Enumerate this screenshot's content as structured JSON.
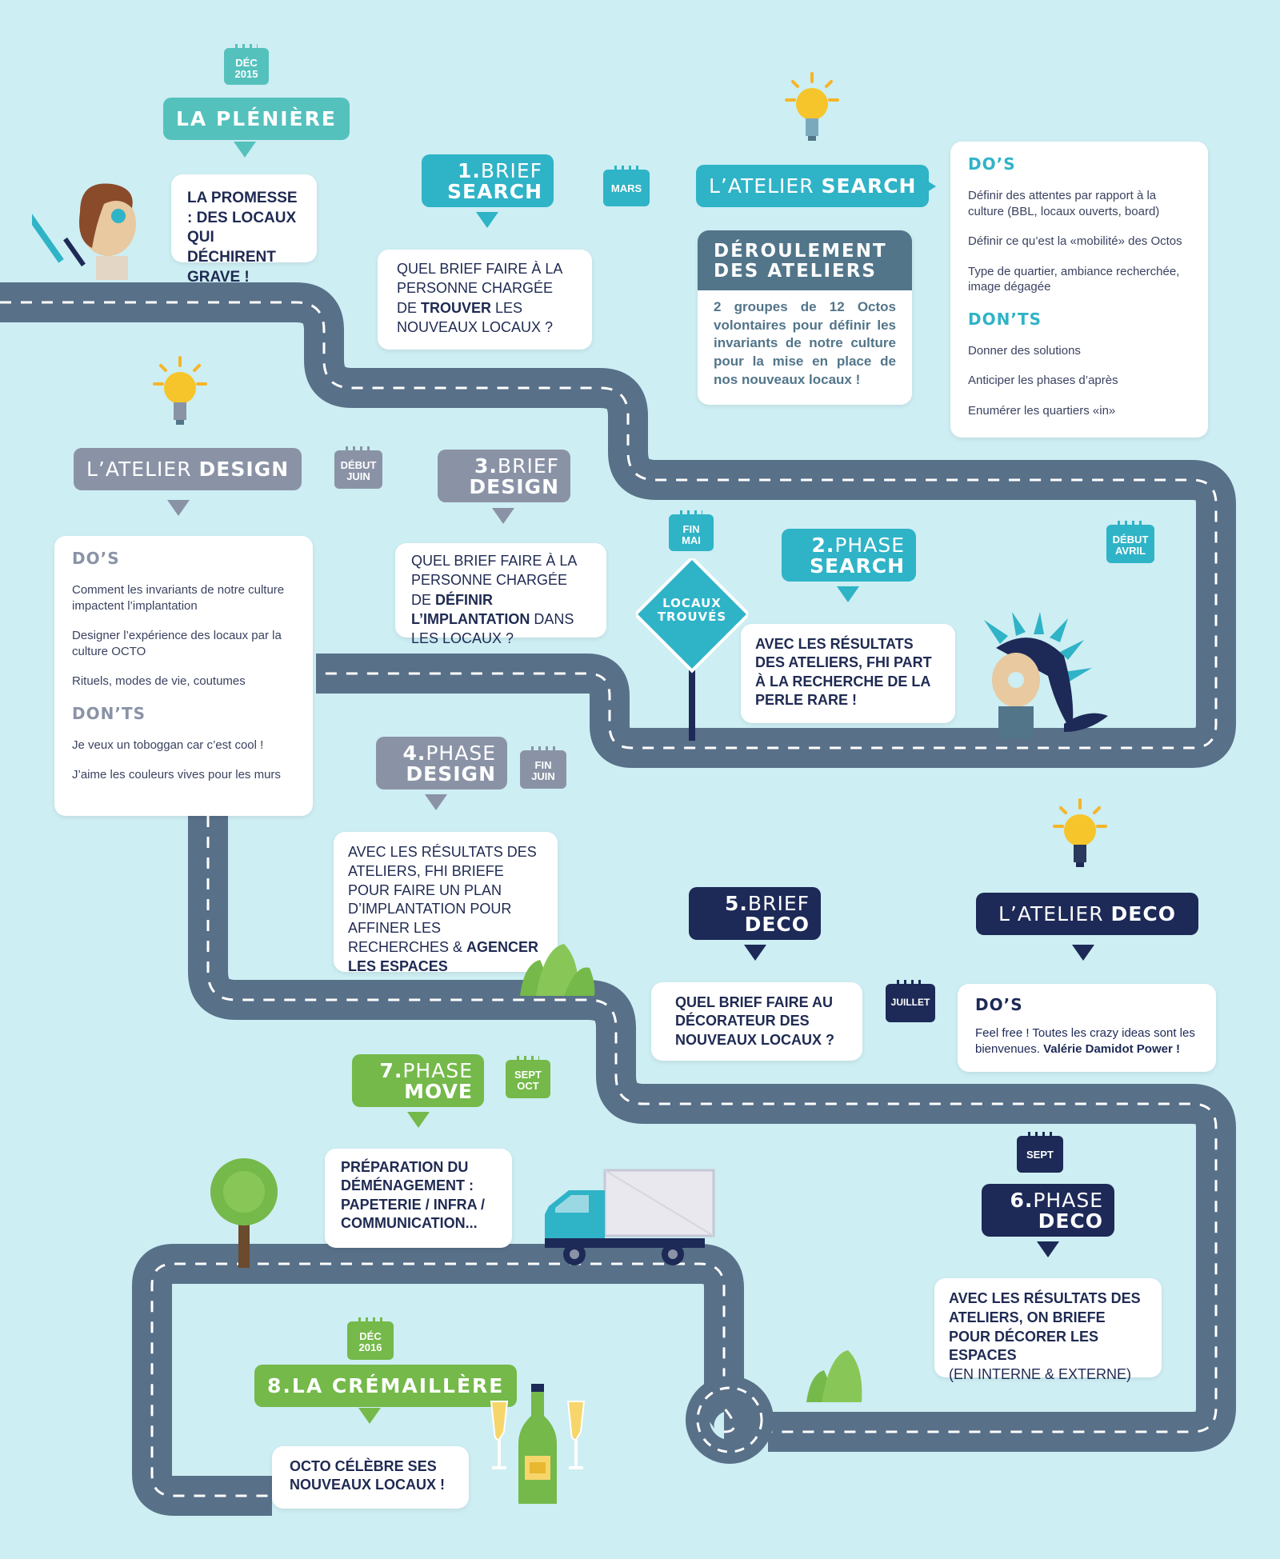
{
  "colors": {
    "background": "#cdeef3",
    "road": "#587088",
    "teal": "#2fb3c7",
    "slate": "#52758a",
    "grey": "#8a93a6",
    "navy": "#1d2957",
    "green": "#74b94a"
  },
  "pleniere": {
    "date": "DÉC\n2015",
    "title": "LA PLÉNIÈRE",
    "card": "LA PROMESSE : DES LOCAUX QUI DÉCHIRENT GRAVE !"
  },
  "brief_search": {
    "num": "1.",
    "pre": "BRIEF",
    "main": "SEARCH",
    "card_pre": "QUEL BRIEF FAIRE À LA PERSONNE CHARGÉE DE ",
    "card_bold": "TROUVER",
    "card_post": " LES NOUVEAUX LOCAUX ?"
  },
  "mars": {
    "date": "MARS"
  },
  "atelier_search": {
    "pre": "L’ATELIER ",
    "main": "SEARCH",
    "dos_title": "DO’S",
    "dos": [
      "Définir des attentes par rapport à la culture (BBL, locaux ouverts, board)",
      "Définir ce qu’est la «mobilité» des Octos",
      "Type de quartier, ambiance recherchée, image dégagée"
    ],
    "donts_title": "DON’TS",
    "donts": [
      "Donner des solutions",
      "Anticiper les phases d’après",
      "Enumérer les quartiers «in»"
    ]
  },
  "deroulement": {
    "title": "DÉROULEMENT DES ATELIERS",
    "text": "2 groupes de 12 Octos volontaires pour définir les invariants de notre culture pour la mise en place de nos nouveaux locaux !"
  },
  "atelier_design": {
    "pre": "L’ATELIER ",
    "main": "DESIGN",
    "dos_title": "DO’S",
    "dos": [
      "Comment les invariants de notre culture impactent l’implantation",
      "Designer l’expérience des locaux par la culture OCTO",
      "Rituels, modes de vie, coutumes"
    ],
    "donts_title": "DON’TS",
    "donts": [
      "Je veux un toboggan car c’est cool !",
      "J’aime les couleurs vives pour les murs"
    ]
  },
  "debut_juin": {
    "date": "DÉBUT\nJUIN"
  },
  "brief_design": {
    "num": "3.",
    "pre": "BRIEF",
    "main": "DESIGN",
    "card_pre": "QUEL BRIEF FAIRE À LA PERSONNE CHARGÉE DE ",
    "card_bold": "DÉFINIR L’IMPLANTATION",
    "card_post": " DANS LES LOCAUX ?"
  },
  "fin_mai": {
    "date": "FIN\nMAI"
  },
  "sign": {
    "text": "LOCAUX\nTROUVÉS"
  },
  "phase_search": {
    "num": "2.",
    "pre": "PHASE",
    "main": "SEARCH",
    "card": "AVEC LES RÉSULTATS DES ATELIERS, FHI PART À LA RECHERCHE DE LA PERLE RARE !"
  },
  "debut_avril": {
    "date": "DÉBUT\nAVRIL"
  },
  "phase_design": {
    "num": "4.",
    "pre": "PHASE",
    "main": "DESIGN",
    "card_pre": "AVEC LES RÉSULTATS DES ATELIERS, FHI BRIEFE POUR FAIRE UN PLAN D’IMPLANTATION POUR AFFINER LES RECHERCHES & ",
    "card_bold": "AGENCER LES ESPACES"
  },
  "fin_juin": {
    "date": "FIN\nJUIN"
  },
  "brief_deco": {
    "num": "5.",
    "pre": "BRIEF",
    "main": "DECO",
    "card": "QUEL BRIEF FAIRE AU DÉCORATEUR DES NOUVEAUX LOCAUX ?"
  },
  "juillet": {
    "date": "JUILLET"
  },
  "atelier_deco": {
    "pre": "L’ATELIER ",
    "main": "DECO",
    "dos_title": "DO’S",
    "dos_text": "Feel free ! Toutes les crazy ideas sont les bienvenues. ",
    "dos_bold": "Valérie Damidot Power !"
  },
  "phase_move": {
    "num": "7.",
    "pre": "PHASE",
    "main": "MOVE",
    "card": "PRÉPARATION DU DÉMÉNAGEMENT : PAPETERIE / INFRA / COMMUNICATION..."
  },
  "sept_oct": {
    "date": "SEPT\nOCT"
  },
  "sept": {
    "date": "SEPT"
  },
  "phase_deco": {
    "num": "6.",
    "pre": "PHASE",
    "main": "DECO",
    "card_bold": "AVEC LES RÉSULTATS DES ATELIERS, ON BRIEFE POUR DÉCORER LES ESPACES",
    "card_post": "(EN INTERNE & EXTERNE)"
  },
  "cremaillere": {
    "date": "DÉC\n2016",
    "title": "8.LA CRÉMAILLÈRE",
    "card": "OCTO CÉLÈBRE SES NOUVEAUX LOCAUX !"
  }
}
